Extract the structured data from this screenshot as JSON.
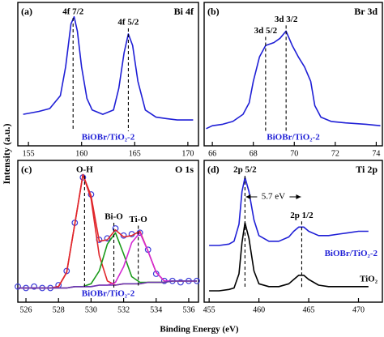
{
  "ylabel": "Intensity (a.u.)",
  "xlabel": "Binding Energy (eV)",
  "chart_data": [
    {
      "type": "line",
      "panel": "(a)",
      "title": "Bi 4f",
      "sample": "BiOBr/TiO₂-2",
      "x": [
        154.5,
        156,
        157,
        158,
        158.5,
        159,
        159.3,
        159.6,
        160,
        160.5,
        161,
        162,
        163,
        163.5,
        164,
        164.4,
        164.8,
        165.3,
        166,
        167,
        168,
        169,
        170.5
      ],
      "series": [
        {
          "color": "#1f1fd6",
          "values": [
            22,
            24,
            26,
            35,
            55,
            85,
            90,
            80,
            55,
            33,
            25,
            22,
            25,
            40,
            65,
            78,
            70,
            45,
            25,
            20,
            19,
            18,
            18
          ]
        }
      ],
      "xlim": [
        154,
        171
      ],
      "xticks": [
        155,
        160,
        165,
        170
      ],
      "ylim": [
        0,
        100
      ],
      "peaks": [
        {
          "label": "4f 7/2",
          "x": 159.2
        },
        {
          "label": "4f 5/2",
          "x": 164.4
        }
      ]
    },
    {
      "type": "line",
      "panel": "(b)",
      "title": "Br 3d",
      "sample": "BiOBr/TiO₂-2",
      "x": [
        65.7,
        66,
        66.5,
        67,
        67.5,
        67.8,
        68,
        68.3,
        68.6,
        69,
        69.3,
        69.6,
        69.9,
        70.2,
        70.5,
        70.8,
        71,
        71.3,
        71.8,
        72.5,
        73.5,
        74.2
      ],
      "series": [
        {
          "color": "#1f1fd6",
          "values": [
            12,
            14,
            15,
            17,
            22,
            30,
            45,
            62,
            70,
            72,
            75,
            80,
            70,
            62,
            55,
            45,
            28,
            20,
            17,
            16,
            15,
            14
          ]
        }
      ],
      "xlim": [
        65.6,
        74.3
      ],
      "xticks": [
        66,
        68,
        70,
        72,
        74
      ],
      "ylim": [
        0,
        100
      ],
      "peaks": [
        {
          "label": "3d 5/2",
          "x": 68.6
        },
        {
          "label": "3d 3/2",
          "x": 69.6
        }
      ]
    },
    {
      "type": "line",
      "panel": "(c)",
      "title": "O 1s",
      "sample": "BiOBr/TiO₂-2",
      "x": [
        525.5,
        526,
        526.5,
        527,
        527.5,
        528,
        528.5,
        529,
        529.5,
        530,
        530.5,
        531,
        531.5,
        532,
        532.5,
        533,
        533.5,
        534,
        534.5,
        535,
        535.5,
        536,
        536.5
      ],
      "series": [
        {
          "color": "#3a3ad8",
          "marker": "circle",
          "values": [
            11,
            10,
            11,
            10,
            10,
            12,
            22,
            56,
            88,
            76,
            44,
            45,
            52,
            47,
            48,
            49,
            37,
            20,
            15,
            15,
            14,
            15,
            15
          ]
        },
        {
          "color": "#e0262b",
          "values": [
            10,
            10,
            10,
            10,
            10,
            11,
            21,
            55,
            90,
            75,
            43,
            44,
            51,
            46,
            47,
            50,
            36,
            21,
            15,
            15,
            15,
            15,
            15
          ]
        },
        {
          "color": "#e0262b",
          "values": [
            10,
            10,
            10,
            10,
            10,
            11,
            21,
            55,
            90,
            73,
            33,
            15,
            12,
            13,
            13,
            13,
            14,
            14,
            14,
            15,
            15,
            15,
            15
          ]
        },
        {
          "color": "#1a9a1a",
          "values": [
            10,
            10,
            10,
            10,
            10,
            10,
            10,
            11,
            11,
            13,
            22,
            41,
            49,
            34,
            18,
            14,
            14,
            14,
            14,
            15,
            15,
            15,
            15
          ]
        },
        {
          "color": "#d42ad4",
          "values": [
            10,
            10,
            10,
            10,
            10,
            10,
            10,
            11,
            11,
            11,
            12,
            12,
            14,
            25,
            42,
            49,
            36,
            21,
            15,
            15,
            15,
            15,
            15
          ]
        },
        {
          "color": "#6a3ab0",
          "values": [
            10,
            10,
            10,
            10,
            10,
            10,
            10,
            11,
            11,
            11,
            12,
            12,
            12,
            13,
            13,
            13,
            14,
            14,
            14,
            15,
            15,
            15,
            15
          ]
        }
      ],
      "xlim": [
        525.5,
        536.6
      ],
      "xticks": [
        526,
        528,
        530,
        532,
        534,
        536
      ],
      "ylim": [
        0,
        100
      ],
      "peaks": [
        {
          "label": "O-H",
          "x": 529.6
        },
        {
          "label": "Bi-O",
          "x": 531.4
        },
        {
          "label": "Ti-O",
          "x": 532.9
        }
      ]
    },
    {
      "type": "line",
      "panel": "(d)",
      "title": "Ti 2p",
      "x": [
        455,
        456,
        457,
        457.5,
        458,
        458.3,
        458.6,
        459,
        459.5,
        460,
        461,
        462,
        463,
        463.5,
        464,
        464.5,
        465,
        466,
        467,
        468,
        469,
        470,
        471
      ],
      "series": [
        {
          "label": "BiOBr/TiO₂-2",
          "color": "#1f1fd6",
          "values": [
            40,
            40,
            41,
            43,
            55,
            78,
            88,
            78,
            58,
            47,
            43,
            43,
            46,
            50,
            53,
            53,
            50,
            47,
            47,
            48,
            49,
            50,
            50
          ]
        },
        {
          "label": "TiO₂",
          "color": "#000000",
          "values": [
            8,
            8,
            9,
            10,
            20,
            42,
            56,
            45,
            22,
            13,
            11,
            11,
            13,
            16,
            19,
            19,
            16,
            12,
            11,
            11,
            11,
            11,
            11
          ]
        }
      ],
      "xlim": [
        454.5,
        472.4
      ],
      "xticks": [
        455,
        460,
        465,
        470
      ],
      "ylim": [
        0,
        100
      ],
      "peaks": [
        {
          "label": "2p 5/2",
          "x": 458.6
        },
        {
          "label": "2p 1/2",
          "x": 464.3
        }
      ],
      "splitting": {
        "value": 5.7,
        "label": "5.7 eV"
      }
    }
  ]
}
